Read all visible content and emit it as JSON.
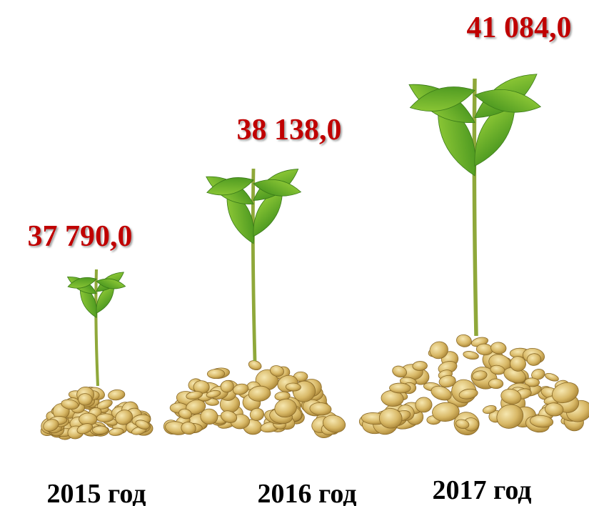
{
  "items": [
    {
      "value": "37 790,0",
      "year": "2015 год"
    },
    {
      "value": "38 138,0",
      "year": "2016 год"
    },
    {
      "value": "41 084,0",
      "year": "2017 год"
    }
  ]
}
